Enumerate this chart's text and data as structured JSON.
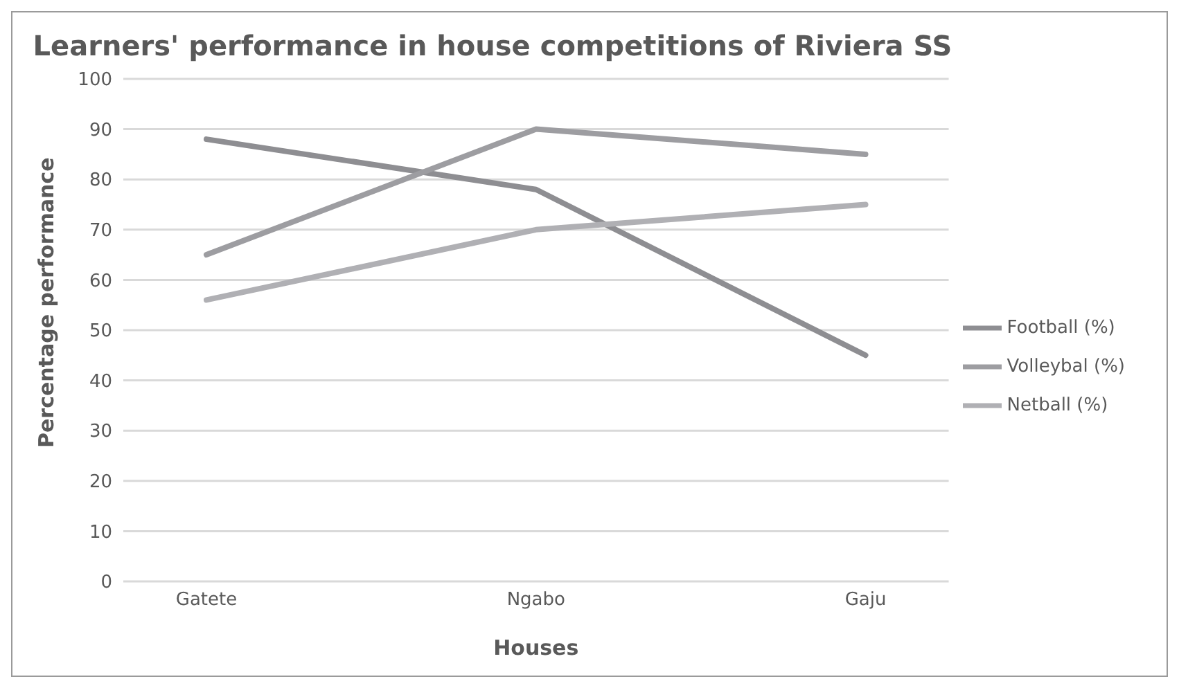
{
  "chart_data": {
    "type": "line",
    "title": "Learners' performance in house competitions of Riviera SS",
    "xlabel": "Houses",
    "ylabel": "Percentage performance",
    "categories": [
      "Gatete",
      "Ngabo",
      "Gaju"
    ],
    "series": [
      {
        "name": "Football (%)",
        "color": "#8e8e92",
        "values": [
          88,
          78,
          45
        ]
      },
      {
        "name": "Volleybal (%)",
        "color": "#9d9da1",
        "values": [
          65,
          90,
          85
        ]
      },
      {
        "name": "Netball (%)",
        "color": "#b0b0b4",
        "values": [
          56,
          70,
          75
        ]
      }
    ],
    "ylim": [
      0,
      100
    ],
    "yticks": [
      0,
      10,
      20,
      30,
      40,
      50,
      60,
      70,
      80,
      90,
      100
    ],
    "grid": "y",
    "legend": "right",
    "marker": "none",
    "line_style": "solid"
  }
}
